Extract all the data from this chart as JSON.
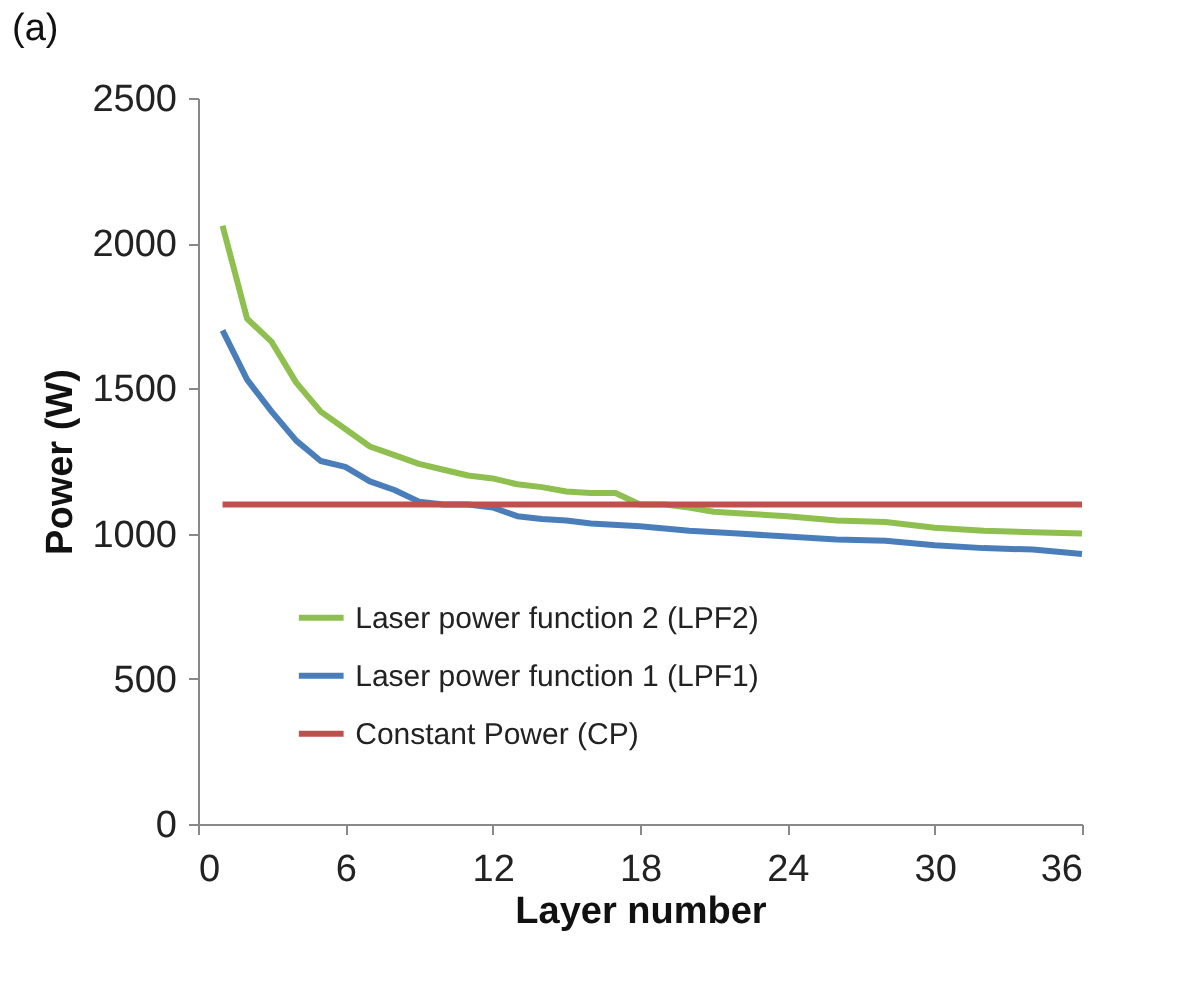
{
  "chart_data": {
    "type": "line",
    "xlabel": "Layer number",
    "ylabel": "Power (W)",
    "annotations": [
      "(a)"
    ],
    "xlim": [
      0,
      36
    ],
    "xticks": [
      0,
      6,
      12,
      18,
      24,
      30,
      36
    ],
    "ylim": [
      0,
      2500
    ],
    "yticks": [
      0,
      500,
      1000,
      1500,
      2000,
      2500
    ],
    "grid": false,
    "legend": "bottom",
    "marker": "none",
    "line_style": "solid",
    "series": [
      {
        "name": "Laser power function 2 (LPF2)",
        "color": "#8fbf4f",
        "x": [
          1,
          2,
          3,
          4,
          5,
          6,
          7,
          8,
          9,
          10,
          11,
          12,
          13,
          14,
          15,
          16,
          17,
          18,
          19,
          20,
          21,
          22,
          24,
          26,
          28,
          30,
          32,
          34,
          36
        ],
        "values": [
          2060,
          1740,
          1660,
          1520,
          1420,
          1360,
          1300,
          1270,
          1240,
          1220,
          1200,
          1190,
          1170,
          1160,
          1145,
          1140,
          1140,
          1100,
          1100,
          1090,
          1075,
          1070,
          1060,
          1045,
          1040,
          1020,
          1010,
          1005,
          1000
        ]
      },
      {
        "name": "Laser power function 1 (LPF1)",
        "color": "#4a7ebb",
        "x": [
          1,
          2,
          3,
          4,
          5,
          6,
          7,
          8,
          9,
          10,
          11,
          12,
          13,
          14,
          15,
          16,
          18,
          20,
          22,
          24,
          26,
          28,
          30,
          32,
          34,
          36
        ],
        "values": [
          1700,
          1530,
          1420,
          1320,
          1250,
          1230,
          1180,
          1150,
          1110,
          1100,
          1100,
          1090,
          1060,
          1050,
          1045,
          1035,
          1025,
          1010,
          1000,
          990,
          980,
          975,
          960,
          950,
          945,
          930
        ]
      },
      {
        "name": "Constant Power (CP)",
        "color": "#c0504d",
        "x": [
          1,
          36
        ],
        "values": [
          1100,
          1100
        ]
      }
    ]
  }
}
